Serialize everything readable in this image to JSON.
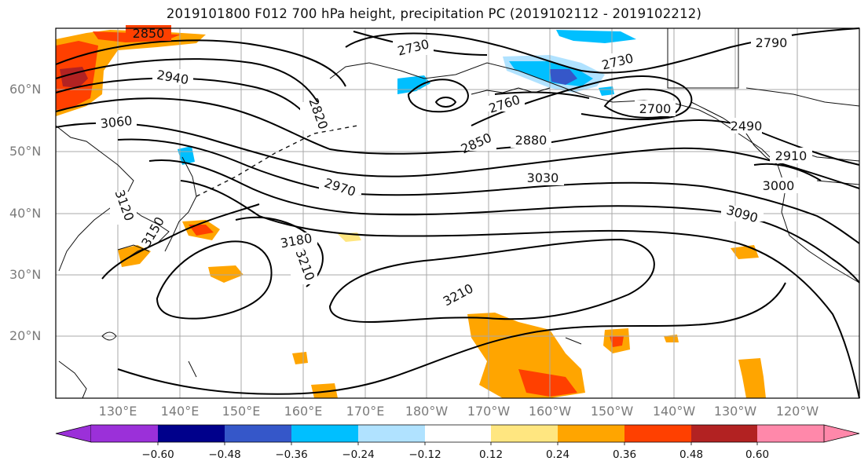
{
  "title": "2019101800 F012 700 hPa height, precipitation PC (2019102112 - 2019102212)",
  "lat_labels": [
    "60°N",
    "50°N",
    "40°N",
    "30°N",
    "20°N"
  ],
  "lon_labels": [
    "130°E",
    "140°E",
    "150°E",
    "160°E",
    "170°E",
    "180°W",
    "170°W",
    "160°W",
    "150°W",
    "140°W",
    "130°W",
    "120°W"
  ],
  "colorbar": {
    "tick_labels": [
      "−0.60",
      "−0.48",
      "−0.36",
      "−0.24",
      "−0.12",
      "0.12",
      "0.24",
      "0.36",
      "0.48",
      "0.60"
    ],
    "colors": [
      "#9b30d9",
      "#00008b",
      "#3557c9",
      "#00bfff",
      "#b0e2ff",
      "#ffffff",
      "#ffe680",
      "#ffa500",
      "#ff4000",
      "#b22222",
      "#ff88aa"
    ]
  },
  "contour_labels": {
    "c2850_top": "2850",
    "c2940": "2940",
    "c3060": "3060",
    "c2820": "2820",
    "c2730_a": "2730",
    "c2730_b": "2730",
    "c2760": "2760",
    "c2700": "2700",
    "c2790": "2790",
    "c2850_mid": "2850",
    "c2880": "2880",
    "c2970": "2970",
    "c3030": "3030",
    "c3000": "3000",
    "c3090": "3090",
    "c3180": "3180",
    "c3210_a": "3210",
    "c3210_b": "3210",
    "c3120": "3120",
    "c3150": "3150",
    "c2910": "2910",
    "c2490": "2490"
  }
}
